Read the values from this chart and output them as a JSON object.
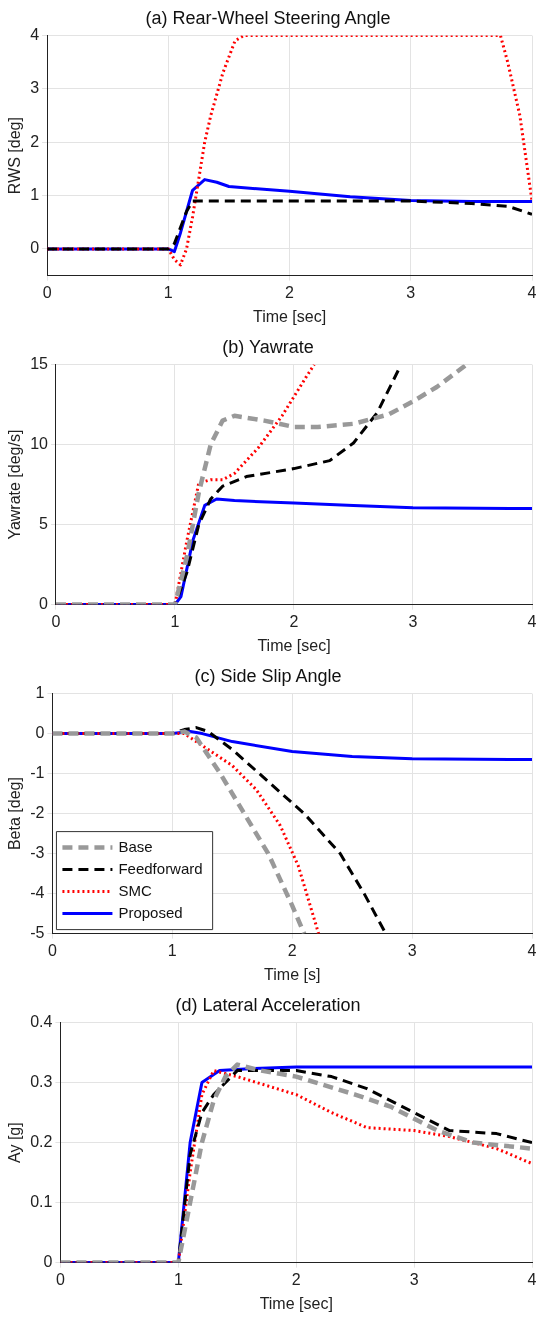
{
  "chart_data": [
    {
      "type": "line",
      "title": "(a) Rear-Wheel Steering Angle",
      "xlabel": "Time [sec]",
      "ylabel": "RWS [deg]",
      "xlim": [
        0,
        4
      ],
      "xticks": [
        0,
        1,
        2,
        3,
        4
      ],
      "ylim": [
        -0.5,
        4
      ],
      "yticks": [
        0,
        1,
        2,
        3,
        4
      ],
      "grid": true,
      "series": [
        {
          "color": "#000000",
          "line_style": "dashed",
          "x": [
            0,
            1,
            1.05,
            1.15,
            1.2,
            3,
            3.5,
            3.8,
            4
          ],
          "values": [
            0,
            0,
            0.1,
            0.7,
            0.9,
            0.9,
            0.85,
            0.8,
            0.65
          ]
        },
        {
          "color": "#ff0000",
          "line_style": "dotted",
          "x": [
            0,
            1,
            1.05,
            1.1,
            1.15,
            1.2,
            1.3,
            1.35,
            1.45,
            1.55,
            1.62,
            3.74,
            3.8,
            3.9,
            4
          ],
          "values": [
            0,
            0,
            -0.2,
            -0.3,
            0,
            0.6,
            2.0,
            2.5,
            3.3,
            3.9,
            4,
            4,
            3.5,
            2.5,
            0.9
          ]
        },
        {
          "color": "#0000ff",
          "line_style": "solid",
          "x": [
            0,
            1,
            1.05,
            1.1,
            1.2,
            1.3,
            1.4,
            1.5,
            2,
            2.5,
            3,
            3.5,
            4
          ],
          "values": [
            0,
            0,
            -0.05,
            0.3,
            1.1,
            1.3,
            1.25,
            1.17,
            1.08,
            0.98,
            0.91,
            0.89,
            0.89
          ]
        }
      ]
    },
    {
      "type": "line",
      "title": "(b) Yawrate",
      "xlabel": "Time [sec]",
      "ylabel": "Yawrate [deg/s]",
      "xlim": [
        0,
        4
      ],
      "xticks": [
        0,
        1,
        2,
        3,
        4
      ],
      "ylim": [
        0,
        15
      ],
      "yticks": [
        0,
        5,
        10,
        15
      ],
      "grid": true,
      "series": [
        {
          "color": "#999999",
          "line_style": "dashed",
          "x": [
            0,
            1,
            1.1,
            1.2,
            1.3,
            1.4,
            1.5,
            1.75,
            2,
            2.2,
            2.5,
            2.8,
            3,
            3.2,
            3.45
          ],
          "values": [
            0,
            0,
            3,
            7,
            10,
            11.5,
            11.8,
            11.5,
            11.1,
            11.1,
            11.3,
            11.9,
            12.7,
            13.6,
            15
          ]
        },
        {
          "color": "#000000",
          "line_style": "dashed",
          "x": [
            0,
            1,
            1.1,
            1.2,
            1.3,
            1.4,
            1.6,
            2,
            2.3,
            2.5,
            2.7,
            2.8,
            2.88
          ],
          "values": [
            0,
            0,
            2,
            5,
            6.6,
            7.4,
            8,
            8.5,
            9,
            10.1,
            12,
            13.5,
            14.7
          ]
        },
        {
          "color": "#ff0000",
          "line_style": "dotted",
          "x": [
            0,
            1,
            1.1,
            1.2,
            1.3,
            1.4,
            1.5,
            1.7,
            1.9,
            2.1,
            2.17
          ],
          "values": [
            0,
            0,
            4,
            7.6,
            7.8,
            7.8,
            8.2,
            9.8,
            11.8,
            14.2,
            15
          ]
        },
        {
          "color": "#0000ff",
          "line_style": "solid",
          "x": [
            0,
            1,
            1.05,
            1.15,
            1.25,
            1.35,
            1.5,
            2,
            2.5,
            3,
            4
          ],
          "values": [
            0,
            0,
            0.5,
            4,
            6.2,
            6.6,
            6.5,
            6.35,
            6.2,
            6.05,
            6.0
          ]
        }
      ]
    },
    {
      "type": "line",
      "title": "(c) Side Slip Angle",
      "xlabel": "Time [s]",
      "ylabel": "Beta [deg]",
      "xlim": [
        0,
        4
      ],
      "xticks": [
        0,
        1,
        2,
        3,
        4
      ],
      "ylim": [
        -5,
        1
      ],
      "yticks": [
        -5,
        -4,
        -3,
        -2,
        -1,
        0,
        1
      ],
      "grid": true,
      "legend": "bottom left",
      "series": [
        {
          "name": "Base",
          "color": "#999999",
          "line_style": "dashed",
          "x": [
            0,
            1,
            1.1,
            1.2,
            1.4,
            1.6,
            1.8,
            2,
            2.1
          ],
          "values": [
            0,
            0,
            0.05,
            -0.1,
            -1,
            -2,
            -3,
            -4.3,
            -5
          ]
        },
        {
          "name": "Feedforward",
          "color": "#000000",
          "line_style": "dashed",
          "x": [
            0,
            1,
            1.1,
            1.2,
            1.3,
            1.5,
            1.8,
            2.1,
            2.4,
            2.6,
            2.78
          ],
          "values": [
            0,
            0,
            0.1,
            0.15,
            0.05,
            -0.4,
            -1.2,
            -2,
            -3,
            -4,
            -5
          ]
        },
        {
          "name": "SMC",
          "color": "#ff0000",
          "line_style": "dotted",
          "x": [
            0,
            1,
            1.1,
            1.3,
            1.5,
            1.7,
            1.9,
            2.05,
            2.15,
            2.22
          ],
          "values": [
            0,
            0,
            0,
            -0.4,
            -0.8,
            -1.4,
            -2.3,
            -3.3,
            -4.3,
            -5
          ]
        },
        {
          "name": "Proposed",
          "color": "#0000ff",
          "line_style": "solid",
          "x": [
            0,
            1,
            1.15,
            1.25,
            1.5,
            2,
            2.5,
            3,
            4
          ],
          "values": [
            0,
            0,
            0.05,
            0,
            -0.2,
            -0.45,
            -0.57,
            -0.63,
            -0.65
          ]
        }
      ]
    },
    {
      "type": "line",
      "title": "(d) Lateral Acceleration",
      "xlabel": "Time [sec]",
      "ylabel": "Ay [g]",
      "xlim": [
        0,
        4
      ],
      "xticks": [
        0,
        1,
        2,
        3,
        4
      ],
      "ylim": [
        0,
        0.4
      ],
      "yticks": [
        0,
        0.1,
        0.2,
        0.3,
        0.4
      ],
      "grid": true,
      "series": [
        {
          "color": "#999999",
          "line_style": "dashed",
          "x": [
            0,
            1,
            1.1,
            1.2,
            1.3,
            1.4,
            1.5,
            1.7,
            2,
            2.5,
            2.8,
            3.2,
            3.5,
            4
          ],
          "values": [
            0,
            0,
            0.1,
            0.2,
            0.27,
            0.31,
            0.33,
            0.32,
            0.31,
            0.28,
            0.26,
            0.22,
            0.2,
            0.19
          ]
        },
        {
          "color": "#000000",
          "line_style": "dashed",
          "x": [
            0,
            1,
            1.1,
            1.2,
            1.3,
            1.5,
            2,
            2.3,
            2.6,
            3,
            3.3,
            3.7,
            4
          ],
          "values": [
            0,
            0,
            0.18,
            0.25,
            0.28,
            0.32,
            0.32,
            0.31,
            0.29,
            0.25,
            0.22,
            0.215,
            0.2
          ]
        },
        {
          "color": "#ff0000",
          "line_style": "dotted",
          "x": [
            0,
            1,
            1.1,
            1.2,
            1.3,
            1.5,
            2,
            2.3,
            2.6,
            3,
            3.3,
            3.7,
            4
          ],
          "values": [
            0,
            0,
            0.15,
            0.28,
            0.32,
            0.31,
            0.28,
            0.25,
            0.225,
            0.22,
            0.21,
            0.19,
            0.165
          ]
        },
        {
          "color": "#0000ff",
          "line_style": "solid",
          "x": [
            0,
            1,
            1.1,
            1.2,
            1.35,
            1.6,
            2,
            4
          ],
          "values": [
            0,
            0,
            0.2,
            0.3,
            0.32,
            0.323,
            0.326,
            0.326
          ]
        }
      ]
    }
  ]
}
